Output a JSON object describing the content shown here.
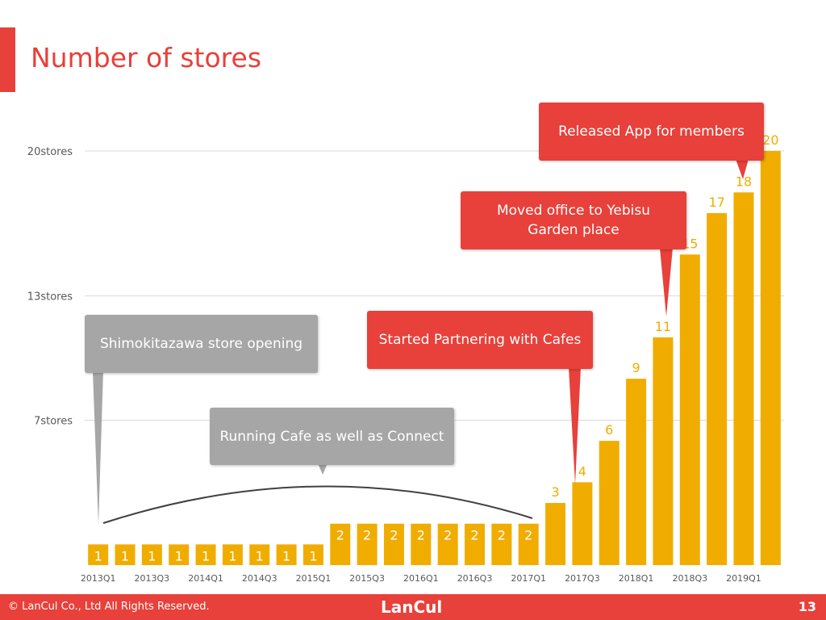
{
  "title": "Number of stores",
  "colors": {
    "accent": "#e8403a",
    "bar": "#f0ad00",
    "callout_gray": "#a6a6a6",
    "grid": "#d9d9d9"
  },
  "chart_data": {
    "type": "bar",
    "categories": [
      "2013Q1",
      "2013Q2",
      "2013Q3",
      "2013Q4",
      "2014Q1",
      "2014Q2",
      "2014Q3",
      "2014Q4",
      "2015Q1",
      "2015Q2",
      "2015Q3",
      "2015Q4",
      "2016Q1",
      "2016Q2",
      "2016Q3",
      "2016Q4",
      "2017Q1",
      "2017Q2",
      "2017Q3",
      "2017Q4",
      "2018Q1",
      "2018Q2",
      "2018Q3",
      "2018Q4",
      "2019Q1",
      "2019Q2"
    ],
    "values": [
      1,
      1,
      1,
      1,
      1,
      1,
      1,
      1,
      1,
      2,
      2,
      2,
      2,
      2,
      2,
      2,
      2,
      3,
      4,
      6,
      9,
      11,
      15,
      17,
      18,
      20
    ],
    "x_tick_labels": [
      "2013Q1",
      "2013Q3",
      "2014Q1",
      "2014Q3",
      "2015Q1",
      "2015Q3",
      "2016Q1",
      "2016Q3",
      "2017Q1",
      "2017Q3",
      "2018Q1",
      "2018Q3",
      "2019Q1"
    ],
    "y_ticks": [
      {
        "value": 7,
        "label": "7stores"
      },
      {
        "value": 13,
        "label": "13stores"
      },
      {
        "value": 20,
        "label": "20stores"
      }
    ],
    "grid": true,
    "legend": "none",
    "annotations": [
      {
        "text": "Shimokitazawa store opening",
        "style": "gray"
      },
      {
        "text": "Running Cafe as well as Connect",
        "style": "gray"
      },
      {
        "text": "Started Partnering with Cafes",
        "style": "red"
      },
      {
        "text": "Moved office to Yebisu Garden place",
        "style": "red"
      },
      {
        "text": "Released App for members",
        "style": "red"
      }
    ]
  },
  "footer": {
    "copyright": "© LanCul Co., Ltd All Rights Reserved.",
    "logo": "LanCul",
    "page_number": "13"
  }
}
